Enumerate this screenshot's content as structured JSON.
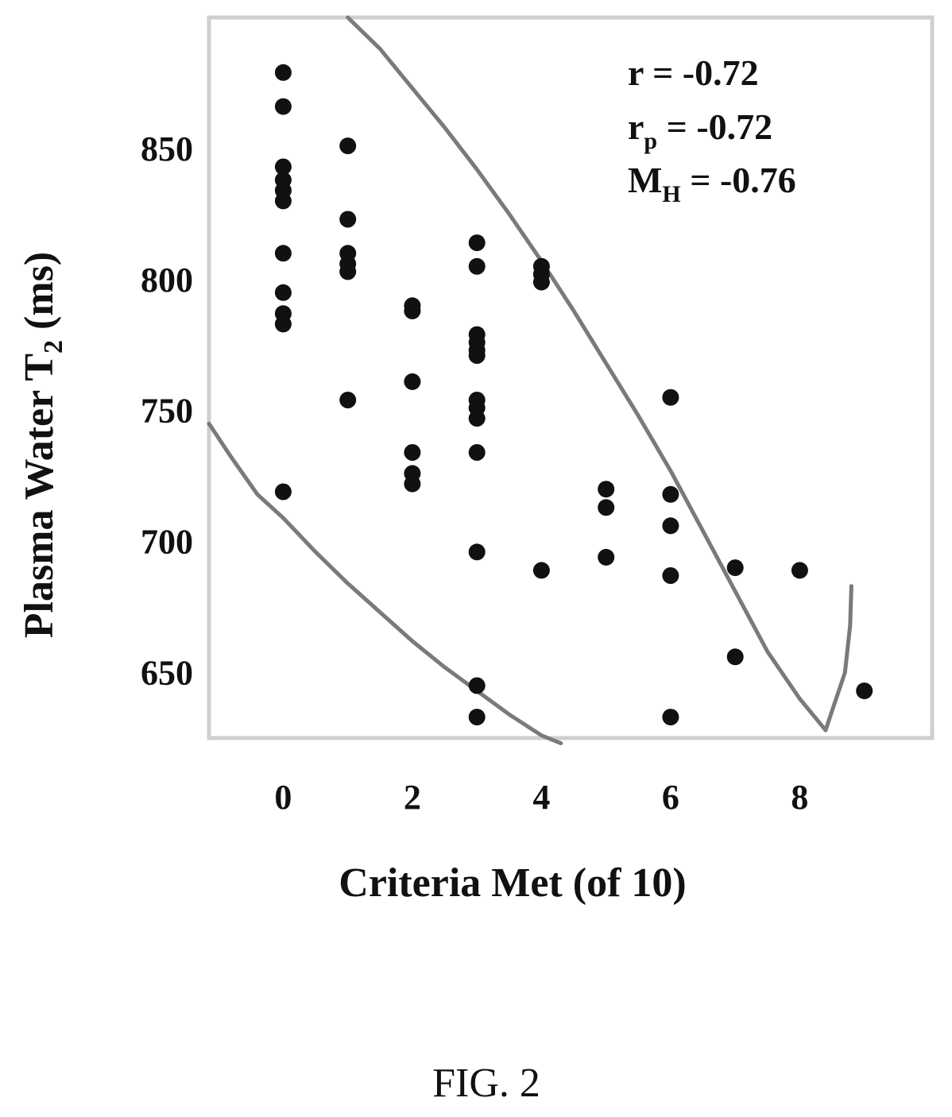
{
  "chart_data": {
    "type": "scatter",
    "xlabel": "Criteria Met (of 10)",
    "ylabel": {
      "main": "Plasma Water T",
      "sub": "2",
      "unit": " (ms)"
    },
    "x_ticks": [
      "0",
      "2",
      "4",
      "6",
      "8"
    ],
    "y_ticks": [
      "650",
      "700",
      "750",
      "800",
      "850"
    ],
    "xlim": [
      -1.15,
      10.05
    ],
    "ylim": [
      625,
      900
    ],
    "points": [
      {
        "x": 0,
        "y": 879
      },
      {
        "x": 0,
        "y": 866
      },
      {
        "x": 0,
        "y": 843
      },
      {
        "x": 0,
        "y": 838
      },
      {
        "x": 0,
        "y": 834
      },
      {
        "x": 0,
        "y": 830
      },
      {
        "x": 0,
        "y": 810
      },
      {
        "x": 0,
        "y": 795
      },
      {
        "x": 0,
        "y": 787
      },
      {
        "x": 0,
        "y": 783
      },
      {
        "x": 0,
        "y": 719
      },
      {
        "x": 1,
        "y": 851
      },
      {
        "x": 1,
        "y": 823
      },
      {
        "x": 1,
        "y": 810
      },
      {
        "x": 1,
        "y": 806
      },
      {
        "x": 1,
        "y": 803
      },
      {
        "x": 1,
        "y": 754
      },
      {
        "x": 2,
        "y": 790
      },
      {
        "x": 2,
        "y": 788
      },
      {
        "x": 2,
        "y": 761
      },
      {
        "x": 2,
        "y": 734
      },
      {
        "x": 2,
        "y": 726
      },
      {
        "x": 2,
        "y": 722
      },
      {
        "x": 3,
        "y": 814
      },
      {
        "x": 3,
        "y": 805
      },
      {
        "x": 3,
        "y": 779
      },
      {
        "x": 3,
        "y": 776
      },
      {
        "x": 3,
        "y": 773
      },
      {
        "x": 3,
        "y": 771
      },
      {
        "x": 3,
        "y": 754
      },
      {
        "x": 3,
        "y": 751
      },
      {
        "x": 3,
        "y": 747
      },
      {
        "x": 3,
        "y": 734
      },
      {
        "x": 3,
        "y": 696
      },
      {
        "x": 3,
        "y": 645
      },
      {
        "x": 3,
        "y": 633
      },
      {
        "x": 4,
        "y": 805
      },
      {
        "x": 4,
        "y": 802
      },
      {
        "x": 4,
        "y": 799
      },
      {
        "x": 4,
        "y": 689
      },
      {
        "x": 5,
        "y": 720
      },
      {
        "x": 5,
        "y": 713
      },
      {
        "x": 5,
        "y": 694
      },
      {
        "x": 6,
        "y": 755
      },
      {
        "x": 6,
        "y": 718
      },
      {
        "x": 6,
        "y": 706
      },
      {
        "x": 6,
        "y": 687
      },
      {
        "x": 6,
        "y": 633
      },
      {
        "x": 7,
        "y": 690
      },
      {
        "x": 7,
        "y": 656
      },
      {
        "x": 8,
        "y": 689
      },
      {
        "x": 9,
        "y": 643
      }
    ],
    "upper_curve": [
      [
        1.0,
        900
      ],
      [
        1.5,
        888
      ],
      [
        2.0,
        873
      ],
      [
        2.5,
        858
      ],
      [
        3.0,
        842
      ],
      [
        3.5,
        825
      ],
      [
        4.0,
        807
      ],
      [
        4.5,
        788
      ],
      [
        5.0,
        768
      ],
      [
        5.5,
        748
      ],
      [
        6.0,
        727
      ],
      [
        6.5,
        704
      ],
      [
        7.0,
        681
      ],
      [
        7.5,
        658
      ],
      [
        8.0,
        640
      ],
      [
        8.4,
        628
      ]
    ],
    "upper_hook": [
      [
        8.4,
        628
      ],
      [
        8.7,
        650
      ],
      [
        8.78,
        668
      ],
      [
        8.8,
        683
      ]
    ],
    "lower_curve": [
      [
        -1.15,
        745
      ],
      [
        -0.8,
        732
      ],
      [
        -0.4,
        718
      ],
      [
        0,
        709
      ],
      [
        0.5,
        696
      ],
      [
        1.0,
        684
      ],
      [
        1.5,
        673
      ],
      [
        2.0,
        662
      ],
      [
        2.5,
        652
      ],
      [
        3.0,
        643
      ],
      [
        3.5,
        634
      ],
      [
        4.0,
        626
      ],
      [
        4.3,
        623
      ]
    ],
    "annotations": [
      {
        "main": "r = -0.72",
        "sub": "",
        "rest": ""
      },
      {
        "main": "r",
        "sub": "p",
        "rest": " = -0.72"
      },
      {
        "main": "M",
        "sub": "H",
        "rest": " = -0.76"
      }
    ],
    "grid": false,
    "marker_color": "#111111",
    "curve_color": "#7a7a7a",
    "frame_color": "#cfcfcf"
  },
  "caption": "FIG. 2"
}
